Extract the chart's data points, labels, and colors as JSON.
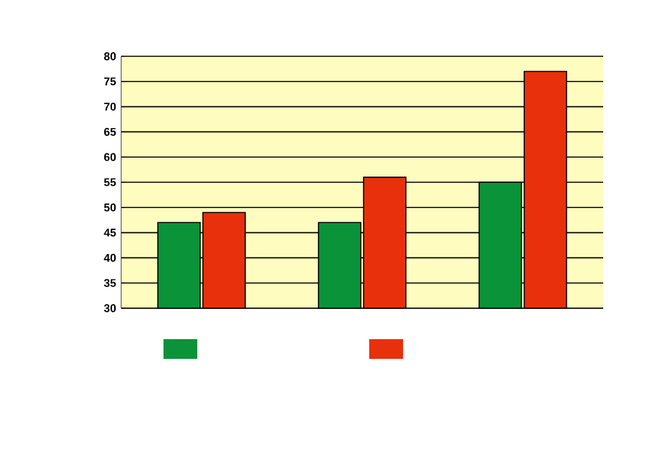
{
  "chart_data": {
    "type": "bar",
    "categories": [
      null,
      null,
      null
    ],
    "series": [
      {
        "color": "#0a9338",
        "values": [
          47,
          47,
          55
        ]
      },
      {
        "color": "#e8310c",
        "values": [
          49,
          56,
          77
        ]
      }
    ],
    "ylim": [
      30,
      80
    ],
    "yticks": [
      30,
      35,
      40,
      45,
      50,
      55,
      60,
      65,
      70,
      75,
      80
    ],
    "grid": "y"
  }
}
